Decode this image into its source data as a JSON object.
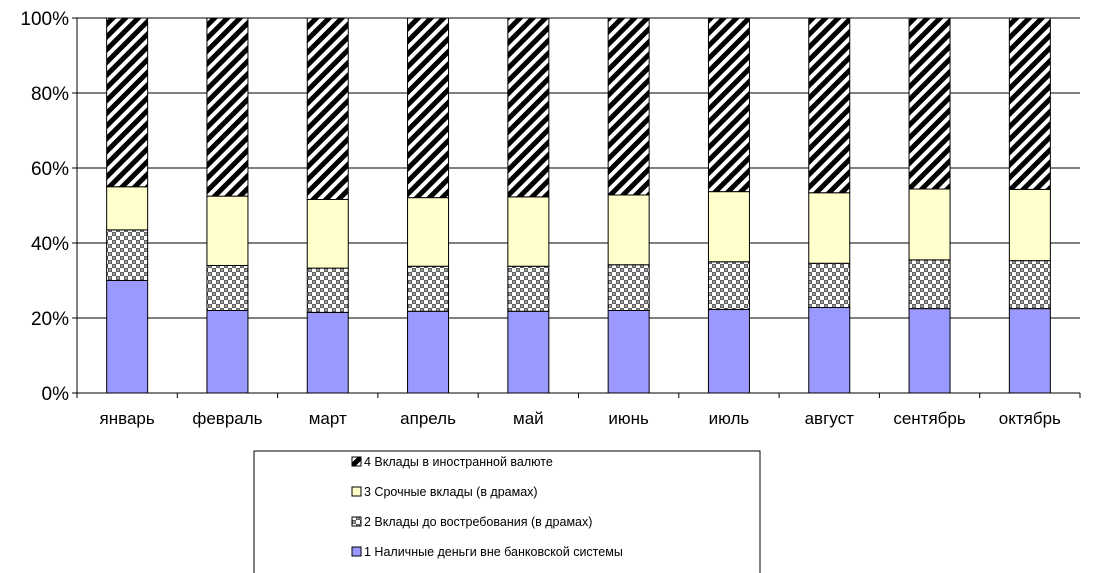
{
  "chart_data": {
    "type": "bar",
    "stacked": "percent",
    "categories": [
      "январь",
      "февраль",
      "март",
      "апрель",
      "май",
      "июнь",
      "июль",
      "август",
      "сентябрь",
      "октябрь"
    ],
    "series": [
      {
        "name": "1 Наличные деньги вне банковской системы",
        "values": [
          30,
          22,
          21.5,
          21.8,
          21.8,
          22,
          22.3,
          22.8,
          22.5,
          22.5
        ],
        "color": "#9999ff",
        "pattern": "solid"
      },
      {
        "name": "2 Вклады до востребования (в драмах)",
        "values": [
          13.5,
          12,
          11.8,
          12,
          12,
          12.2,
          12.7,
          11.8,
          13,
          12.8
        ],
        "color": "#808080",
        "pattern": "checker"
      },
      {
        "name": "3 Срочные вклады (в драмах)",
        "values": [
          11.5,
          18.5,
          18.3,
          18.3,
          18.5,
          18.6,
          18.7,
          18.8,
          18.9,
          19
        ],
        "color": "#ffffcc",
        "pattern": "solid"
      },
      {
        "name": "4 Вклады в иностранной валюте",
        "values": [
          45,
          47.5,
          48.4,
          47.9,
          47.7,
          47.2,
          46.3,
          46.6,
          45.6,
          45.7
        ],
        "color": "#000000",
        "pattern": "diagonal"
      }
    ],
    "ylim": [
      0,
      100
    ],
    "yticks": [
      "0%",
      "20%",
      "40%",
      "60%",
      "80%",
      "100%"
    ],
    "grid": true,
    "legend_position": "bottom",
    "legend_order": [
      3,
      2,
      1,
      0
    ]
  }
}
